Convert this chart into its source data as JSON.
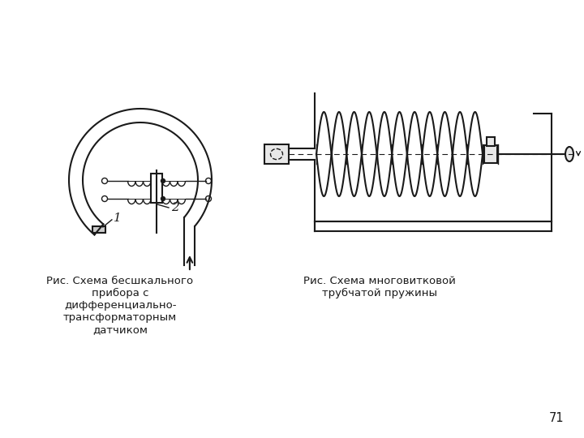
{
  "bg_color": "#ffffff",
  "lc": "#1a1a1a",
  "lw": 1.5,
  "tlw": 1.0,
  "caption1": "Рис. Схема бесшкального\nприбора с\nдифференциально-\nтрансформаторным\nдатчиком",
  "caption2": "Рис. Схема многовитковой\nтрубчатой пружины",
  "page_num": "71",
  "label1": "1",
  "label2": "2",
  "fig_width": 7.2,
  "fig_height": 5.4,
  "dpi": 100
}
